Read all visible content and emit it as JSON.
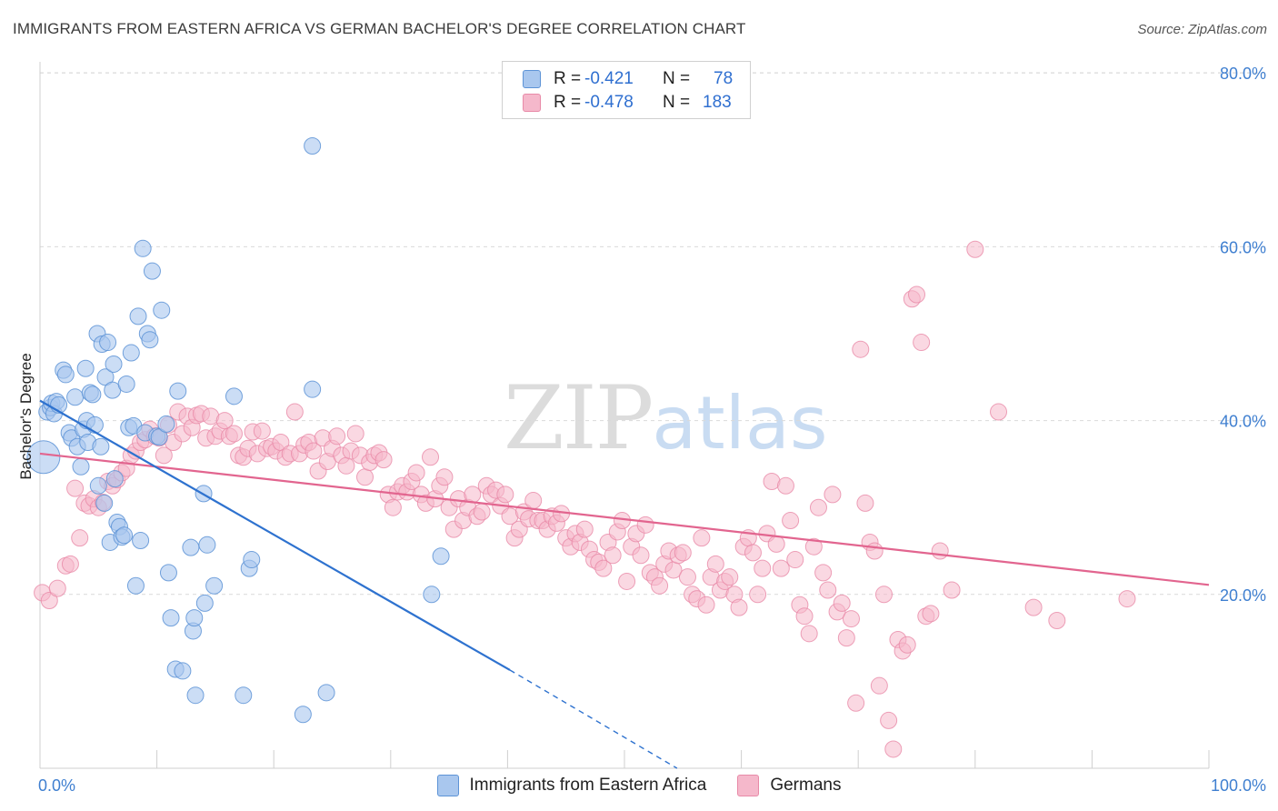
{
  "header": {
    "title": "IMMIGRANTS FROM EASTERN AFRICA VS GERMAN BACHELOR'S DEGREE CORRELATION CHART",
    "source": "Source: ZipAtlas.com"
  },
  "watermark": {
    "zip": "ZIP",
    "atlas": "atlas"
  },
  "legend": {
    "rows": [
      {
        "r_label": "R =",
        "r_value": "-0.421",
        "n_label": "N =",
        "n_value": "78",
        "color": "#a9c7ee"
      },
      {
        "r_label": "R =",
        "r_value": "-0.478",
        "n_label": "N =",
        "n_value": "183",
        "color": "#f5b8cb"
      }
    ]
  },
  "bottom_legend": [
    {
      "label": "Immigrants from Eastern Africa",
      "color": "#a9c7ee"
    },
    {
      "label": "Germans",
      "color": "#f5b8cb"
    }
  ],
  "colors": {
    "blue_fill": "#a9c7ee",
    "blue_stroke": "#5d93d6",
    "blue_line": "#2e72cf",
    "pink_fill": "#f5b8cb",
    "pink_stroke": "#e88aa8",
    "pink_line": "#e2658f",
    "grid": "#d9d9d9",
    "tick_text": "#3f7fd0"
  },
  "chart_data": {
    "type": "scatter",
    "title": "IMMIGRANTS FROM EASTERN AFRICA VS GERMAN BACHELOR'S DEGREE CORRELATION CHART",
    "xlabel": "",
    "ylabel": "Bachelor's Degree",
    "xlim": [
      0,
      100
    ],
    "ylim": [
      0,
      82
    ],
    "x_tick_labels": [
      "0.0%",
      "100.0%"
    ],
    "y_ticks": [
      20,
      40,
      60,
      80
    ],
    "y_tick_labels": [
      "20.0%",
      "40.0%",
      "60.0%",
      "80.0%"
    ],
    "grid": true,
    "legend_placement": "top-center",
    "series": [
      {
        "name": "Immigrants from Eastern Africa",
        "trend": {
          "x": [
            0,
            40.2
          ],
          "y": [
            42.3,
            11.3
          ],
          "dashed_to": [
            54.5,
            0
          ]
        },
        "points": [
          [
            0.3,
            35.8
          ],
          [
            0.6,
            41.0
          ],
          [
            0.9,
            41.5
          ],
          [
            1.0,
            42.0
          ],
          [
            1.2,
            40.8
          ],
          [
            1.4,
            42.2
          ],
          [
            1.6,
            41.8
          ],
          [
            2.0,
            45.8
          ],
          [
            2.2,
            45.3
          ],
          [
            2.5,
            38.6
          ],
          [
            2.7,
            38.0
          ],
          [
            3.0,
            42.7
          ],
          [
            3.2,
            37.0
          ],
          [
            3.5,
            34.7
          ],
          [
            3.7,
            39.0
          ],
          [
            3.9,
            46.0
          ],
          [
            4.0,
            40.0
          ],
          [
            4.1,
            37.5
          ],
          [
            4.3,
            43.2
          ],
          [
            4.5,
            43.0
          ],
          [
            4.7,
            39.5
          ],
          [
            4.9,
            50.0
          ],
          [
            5.0,
            32.5
          ],
          [
            5.2,
            37.0
          ],
          [
            5.3,
            48.8
          ],
          [
            5.5,
            30.5
          ],
          [
            5.6,
            45.0
          ],
          [
            5.8,
            49.0
          ],
          [
            6.0,
            26.0
          ],
          [
            6.2,
            43.5
          ],
          [
            6.3,
            46.5
          ],
          [
            6.4,
            33.3
          ],
          [
            6.6,
            28.3
          ],
          [
            6.8,
            27.8
          ],
          [
            7.0,
            26.6
          ],
          [
            7.2,
            26.8
          ],
          [
            7.4,
            44.2
          ],
          [
            7.6,
            39.2
          ],
          [
            7.8,
            47.8
          ],
          [
            8.0,
            39.4
          ],
          [
            8.2,
            21.0
          ],
          [
            8.4,
            52.0
          ],
          [
            8.6,
            26.2
          ],
          [
            8.8,
            59.8
          ],
          [
            9.0,
            38.6
          ],
          [
            9.2,
            50.0
          ],
          [
            9.4,
            49.3
          ],
          [
            9.6,
            57.2
          ],
          [
            10.0,
            38.2
          ],
          [
            10.2,
            38.1
          ],
          [
            10.4,
            52.7
          ],
          [
            10.8,
            39.6
          ],
          [
            11.0,
            22.5
          ],
          [
            11.2,
            17.3
          ],
          [
            11.6,
            11.4
          ],
          [
            11.8,
            43.4
          ],
          [
            12.2,
            11.2
          ],
          [
            12.9,
            25.4
          ],
          [
            13.1,
            15.8
          ],
          [
            13.2,
            17.3
          ],
          [
            13.3,
            8.4
          ],
          [
            14.0,
            31.6
          ],
          [
            14.1,
            19.0
          ],
          [
            14.3,
            25.7
          ],
          [
            14.9,
            21.0
          ],
          [
            16.6,
            42.8
          ],
          [
            17.4,
            8.4
          ],
          [
            17.9,
            23.0
          ],
          [
            18.1,
            24.0
          ],
          [
            22.5,
            6.2
          ],
          [
            23.3,
            71.6
          ],
          [
            23.3,
            43.6
          ],
          [
            24.5,
            8.7
          ],
          [
            33.5,
            20.0
          ],
          [
            34.3,
            24.4
          ]
        ]
      },
      {
        "name": "Germans",
        "trend": {
          "x": [
            0,
            100
          ],
          "y": [
            36.2,
            21.1
          ]
        },
        "points": [
          [
            0.2,
            20.2
          ],
          [
            0.8,
            19.3
          ],
          [
            1.5,
            20.7
          ],
          [
            2.2,
            23.3
          ],
          [
            2.6,
            23.5
          ],
          [
            3.0,
            32.2
          ],
          [
            3.4,
            26.5
          ],
          [
            3.8,
            30.5
          ],
          [
            4.2,
            30.2
          ],
          [
            4.6,
            31.0
          ],
          [
            5.0,
            30.0
          ],
          [
            5.4,
            30.6
          ],
          [
            5.8,
            33.0
          ],
          [
            6.2,
            32.5
          ],
          [
            6.6,
            33.2
          ],
          [
            7.0,
            34.0
          ],
          [
            7.4,
            34.5
          ],
          [
            7.8,
            36.0
          ],
          [
            8.2,
            36.5
          ],
          [
            8.6,
            37.5
          ],
          [
            9.0,
            37.8
          ],
          [
            9.4,
            39.0
          ],
          [
            9.8,
            38.2
          ],
          [
            10.2,
            38.0
          ],
          [
            10.6,
            36.0
          ],
          [
            11.0,
            39.5
          ],
          [
            11.4,
            37.5
          ],
          [
            11.8,
            41.0
          ],
          [
            12.2,
            38.5
          ],
          [
            12.6,
            40.5
          ],
          [
            13.0,
            39.2
          ],
          [
            13.4,
            40.6
          ],
          [
            13.8,
            40.8
          ],
          [
            14.2,
            38.0
          ],
          [
            14.6,
            40.5
          ],
          [
            15.0,
            38.2
          ],
          [
            15.4,
            38.8
          ],
          [
            15.8,
            40.0
          ],
          [
            16.2,
            38.2
          ],
          [
            16.6,
            38.5
          ],
          [
            17.0,
            36.0
          ],
          [
            17.4,
            35.8
          ],
          [
            17.8,
            36.8
          ],
          [
            18.2,
            38.7
          ],
          [
            18.6,
            36.2
          ],
          [
            19.0,
            38.8
          ],
          [
            19.4,
            36.8
          ],
          [
            19.8,
            37.0
          ],
          [
            20.2,
            36.5
          ],
          [
            20.6,
            37.5
          ],
          [
            21.0,
            35.8
          ],
          [
            21.4,
            36.2
          ],
          [
            21.8,
            41.0
          ],
          [
            22.2,
            36.2
          ],
          [
            22.6,
            37.2
          ],
          [
            23.0,
            37.5
          ],
          [
            23.4,
            36.5
          ],
          [
            23.8,
            34.2
          ],
          [
            24.2,
            38.0
          ],
          [
            24.6,
            35.3
          ],
          [
            25.0,
            36.8
          ],
          [
            25.4,
            38.2
          ],
          [
            25.8,
            36.0
          ],
          [
            26.2,
            34.8
          ],
          [
            26.6,
            36.5
          ],
          [
            27.0,
            38.5
          ],
          [
            27.4,
            36.0
          ],
          [
            27.8,
            33.5
          ],
          [
            28.2,
            35.2
          ],
          [
            28.6,
            36.0
          ],
          [
            29.0,
            36.3
          ],
          [
            29.4,
            35.5
          ],
          [
            29.8,
            31.5
          ],
          [
            30.2,
            30.0
          ],
          [
            30.6,
            31.8
          ],
          [
            31.0,
            32.5
          ],
          [
            31.4,
            31.8
          ],
          [
            31.8,
            33.0
          ],
          [
            32.2,
            34.0
          ],
          [
            32.6,
            31.5
          ],
          [
            33.0,
            30.5
          ],
          [
            33.4,
            35.8
          ],
          [
            33.8,
            31.0
          ],
          [
            34.2,
            32.5
          ],
          [
            34.6,
            33.5
          ],
          [
            35.0,
            30.0
          ],
          [
            35.4,
            27.5
          ],
          [
            35.8,
            31.0
          ],
          [
            36.2,
            28.5
          ],
          [
            36.6,
            30.0
          ],
          [
            37.0,
            31.5
          ],
          [
            37.4,
            29.0
          ],
          [
            37.8,
            29.5
          ],
          [
            38.2,
            32.5
          ],
          [
            38.6,
            31.5
          ],
          [
            39.0,
            32.0
          ],
          [
            39.4,
            30.2
          ],
          [
            39.8,
            31.5
          ],
          [
            40.2,
            29.0
          ],
          [
            40.6,
            26.5
          ],
          [
            41.0,
            27.5
          ],
          [
            41.4,
            29.5
          ],
          [
            41.8,
            28.7
          ],
          [
            42.2,
            30.8
          ],
          [
            42.6,
            28.5
          ],
          [
            43.0,
            28.5
          ],
          [
            43.4,
            27.5
          ],
          [
            43.8,
            29.0
          ],
          [
            44.2,
            28.2
          ],
          [
            44.6,
            29.3
          ],
          [
            45.0,
            26.5
          ],
          [
            45.4,
            25.5
          ],
          [
            45.8,
            27.0
          ],
          [
            46.2,
            26.0
          ],
          [
            46.6,
            27.5
          ],
          [
            47.0,
            25.2
          ],
          [
            47.4,
            24.0
          ],
          [
            47.8,
            23.7
          ],
          [
            48.2,
            23.0
          ],
          [
            48.6,
            26.0
          ],
          [
            49.0,
            24.5
          ],
          [
            49.4,
            27.2
          ],
          [
            49.8,
            28.5
          ],
          [
            50.2,
            21.5
          ],
          [
            50.6,
            25.5
          ],
          [
            51.0,
            27.0
          ],
          [
            51.4,
            24.5
          ],
          [
            51.8,
            28.0
          ],
          [
            52.2,
            22.5
          ],
          [
            52.6,
            22.0
          ],
          [
            53.0,
            21.0
          ],
          [
            53.4,
            23.5
          ],
          [
            53.8,
            25.0
          ],
          [
            54.2,
            22.8
          ],
          [
            54.6,
            24.5
          ],
          [
            55.0,
            24.8
          ],
          [
            55.4,
            22.0
          ],
          [
            55.8,
            20.0
          ],
          [
            56.2,
            19.5
          ],
          [
            56.6,
            26.5
          ],
          [
            57.0,
            18.8
          ],
          [
            57.4,
            22.0
          ],
          [
            57.8,
            23.5
          ],
          [
            58.2,
            20.5
          ],
          [
            58.6,
            21.5
          ],
          [
            59.0,
            22.0
          ],
          [
            59.4,
            20.0
          ],
          [
            59.8,
            18.5
          ],
          [
            60.2,
            25.5
          ],
          [
            60.6,
            26.5
          ],
          [
            61.0,
            24.8
          ],
          [
            61.4,
            20.0
          ],
          [
            61.8,
            23.0
          ],
          [
            62.2,
            27.0
          ],
          [
            62.6,
            33.0
          ],
          [
            63.0,
            25.8
          ],
          [
            63.4,
            23.0
          ],
          [
            63.8,
            32.5
          ],
          [
            64.2,
            28.5
          ],
          [
            64.6,
            24.0
          ],
          [
            65.0,
            18.8
          ],
          [
            65.4,
            17.5
          ],
          [
            65.8,
            15.5
          ],
          [
            66.2,
            25.5
          ],
          [
            66.6,
            30.0
          ],
          [
            67.0,
            22.5
          ],
          [
            67.4,
            20.5
          ],
          [
            67.8,
            31.5
          ],
          [
            68.2,
            18.0
          ],
          [
            68.6,
            19.0
          ],
          [
            69.0,
            15.0
          ],
          [
            69.4,
            17.2
          ],
          [
            69.8,
            7.5
          ],
          [
            70.2,
            48.2
          ],
          [
            70.6,
            30.5
          ],
          [
            71.0,
            26.0
          ],
          [
            71.4,
            25.0
          ],
          [
            71.8,
            9.5
          ],
          [
            72.2,
            20.0
          ],
          [
            72.6,
            5.5
          ],
          [
            73.0,
            2.2
          ],
          [
            73.4,
            14.8
          ],
          [
            73.8,
            13.5
          ],
          [
            74.2,
            14.2
          ],
          [
            74.6,
            54.0
          ],
          [
            75.0,
            54.5
          ],
          [
            75.4,
            49.0
          ],
          [
            75.8,
            17.5
          ],
          [
            76.2,
            17.8
          ],
          [
            77.0,
            25.0
          ],
          [
            78.0,
            20.5
          ],
          [
            80.0,
            59.7
          ],
          [
            82.0,
            41.0
          ],
          [
            85.0,
            18.5
          ],
          [
            87.0,
            17.0
          ],
          [
            93.0,
            19.5
          ]
        ]
      }
    ]
  }
}
